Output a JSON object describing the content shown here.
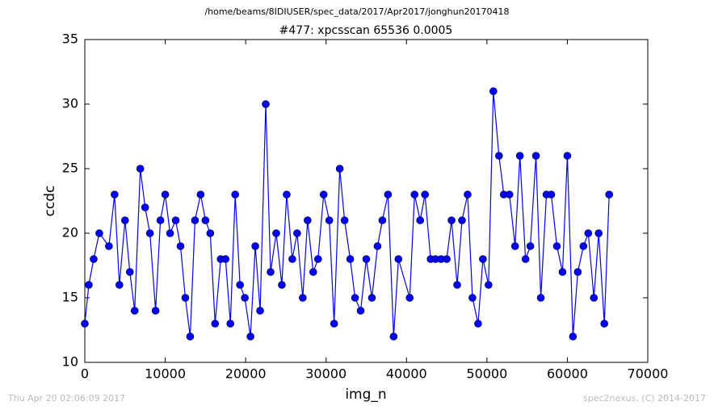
{
  "chart_data": {
    "type": "line",
    "suptitle": "/home/beams/8IDIUSER/spec_data/2017/Apr2017/jonghun20170418",
    "title": "#477: xpcsscan 65536 0.0005",
    "xlabel": "img_n",
    "ylabel": "ccdc",
    "annotations": [
      "Thu Apr 20 02:06:09 2017",
      "spec2nexus, (C) 2014-2017"
    ],
    "x": [
      0,
      500,
      1100,
      1800,
      3000,
      3700,
      4300,
      5000,
      5600,
      6200,
      6900,
      7500,
      8100,
      8800,
      9400,
      10000,
      10600,
      11300,
      11900,
      12500,
      13100,
      13700,
      14400,
      15000,
      15600,
      16200,
      16900,
      17500,
      18100,
      18700,
      19300,
      19900,
      20600,
      21200,
      21800,
      22500,
      23100,
      23800,
      24500,
      25100,
      25800,
      26400,
      27100,
      27700,
      28400,
      29000,
      29700,
      30400,
      31000,
      31700,
      32300,
      33000,
      33600,
      34300,
      35000,
      35700,
      36400,
      37000,
      37700,
      38400,
      39000,
      40400,
      41000,
      41700,
      42300,
      43000,
      43600,
      44300,
      45000,
      45600,
      46300,
      46900,
      47600,
      48200,
      48900,
      49500,
      50200,
      50800,
      51500,
      52100,
      52800,
      53500,
      54100,
      54800,
      55400,
      56100,
      56700,
      57400,
      58000,
      58700,
      59400,
      60000,
      60700,
      61300,
      62000,
      62600,
      63300,
      63900,
      64600,
      65200
    ],
    "series": [
      {
        "color": "#0000ff",
        "values": [
          13,
          16,
          18,
          20,
          19,
          23,
          16,
          21,
          17,
          14,
          25,
          22,
          20,
          14,
          21,
          23,
          20,
          21,
          19,
          15,
          12,
          21,
          23,
          21,
          20,
          13,
          18,
          18,
          13,
          23,
          16,
          15,
          12,
          19,
          14,
          30,
          17,
          20,
          16,
          23,
          18,
          20,
          15,
          21,
          17,
          18,
          23,
          21,
          13,
          25,
          21,
          18,
          15,
          14,
          18,
          15,
          19,
          21,
          23,
          12,
          18,
          15,
          23,
          21,
          23,
          18,
          18,
          18,
          18,
          21,
          16,
          21,
          23,
          15,
          13,
          18,
          16,
          31,
          26,
          23,
          23,
          19,
          26,
          18,
          19,
          26,
          15,
          23,
          23,
          19,
          17,
          26,
          12,
          17,
          19,
          20,
          15,
          20,
          13,
          23
        ]
      }
    ],
    "xlim": [
      0,
      70000
    ],
    "ylim": [
      10,
      35
    ],
    "xticks": [
      0,
      10000,
      20000,
      30000,
      40000,
      50000,
      60000,
      70000
    ],
    "yticks": [
      10,
      15,
      20,
      25,
      30,
      35
    ]
  }
}
